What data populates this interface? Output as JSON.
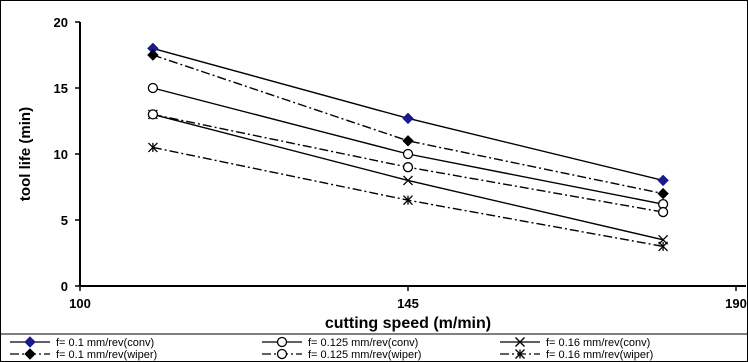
{
  "chart_data": {
    "type": "line",
    "xlabel": "cutting speed (m/min)",
    "ylabel": "tool life (min)",
    "xlim": [
      100,
      190
    ],
    "ylim": [
      0,
      20
    ],
    "xticks": [
      "100",
      "145",
      "190"
    ],
    "yticks": [
      "0",
      "5",
      "10",
      "15",
      "20"
    ],
    "grid": false,
    "legend_position": "bottom",
    "series": [
      {
        "name": "f= 0.1 mm/rev(conv)",
        "x": [
          110,
          145,
          180
        ],
        "y": [
          18.0,
          12.7,
          8.0
        ],
        "marker": "diamond-filled-blue",
        "dash": "solid",
        "color": "#000000"
      },
      {
        "name": "f= 0.125 mm/rev(conv)",
        "x": [
          110,
          145,
          180
        ],
        "y": [
          15.0,
          10.0,
          6.2
        ],
        "marker": "circle-open",
        "dash": "solid",
        "color": "#000000"
      },
      {
        "name": "f= 0.16 mm/rev(conv)",
        "x": [
          110,
          145,
          180
        ],
        "y": [
          13.0,
          8.0,
          3.5
        ],
        "marker": "x",
        "dash": "solid",
        "color": "#000000"
      },
      {
        "name": "f= 0.1 mm/rev(wiper)",
        "x": [
          110,
          145,
          180
        ],
        "y": [
          17.5,
          11.0,
          7.0
        ],
        "marker": "diamond-filled-black",
        "dash": "dashdot",
        "color": "#000000"
      },
      {
        "name": "f= 0.125 mm/rev(wiper)",
        "x": [
          110,
          145,
          180
        ],
        "y": [
          13.0,
          9.0,
          5.6
        ],
        "marker": "circle-open",
        "dash": "dashdot",
        "color": "#000000"
      },
      {
        "name": "f= 0.16 mm/rev(wiper)",
        "x": [
          110,
          145,
          180
        ],
        "y": [
          10.5,
          6.5,
          3.0
        ],
        "marker": "star",
        "dash": "dashdot",
        "color": "#000000"
      }
    ]
  }
}
